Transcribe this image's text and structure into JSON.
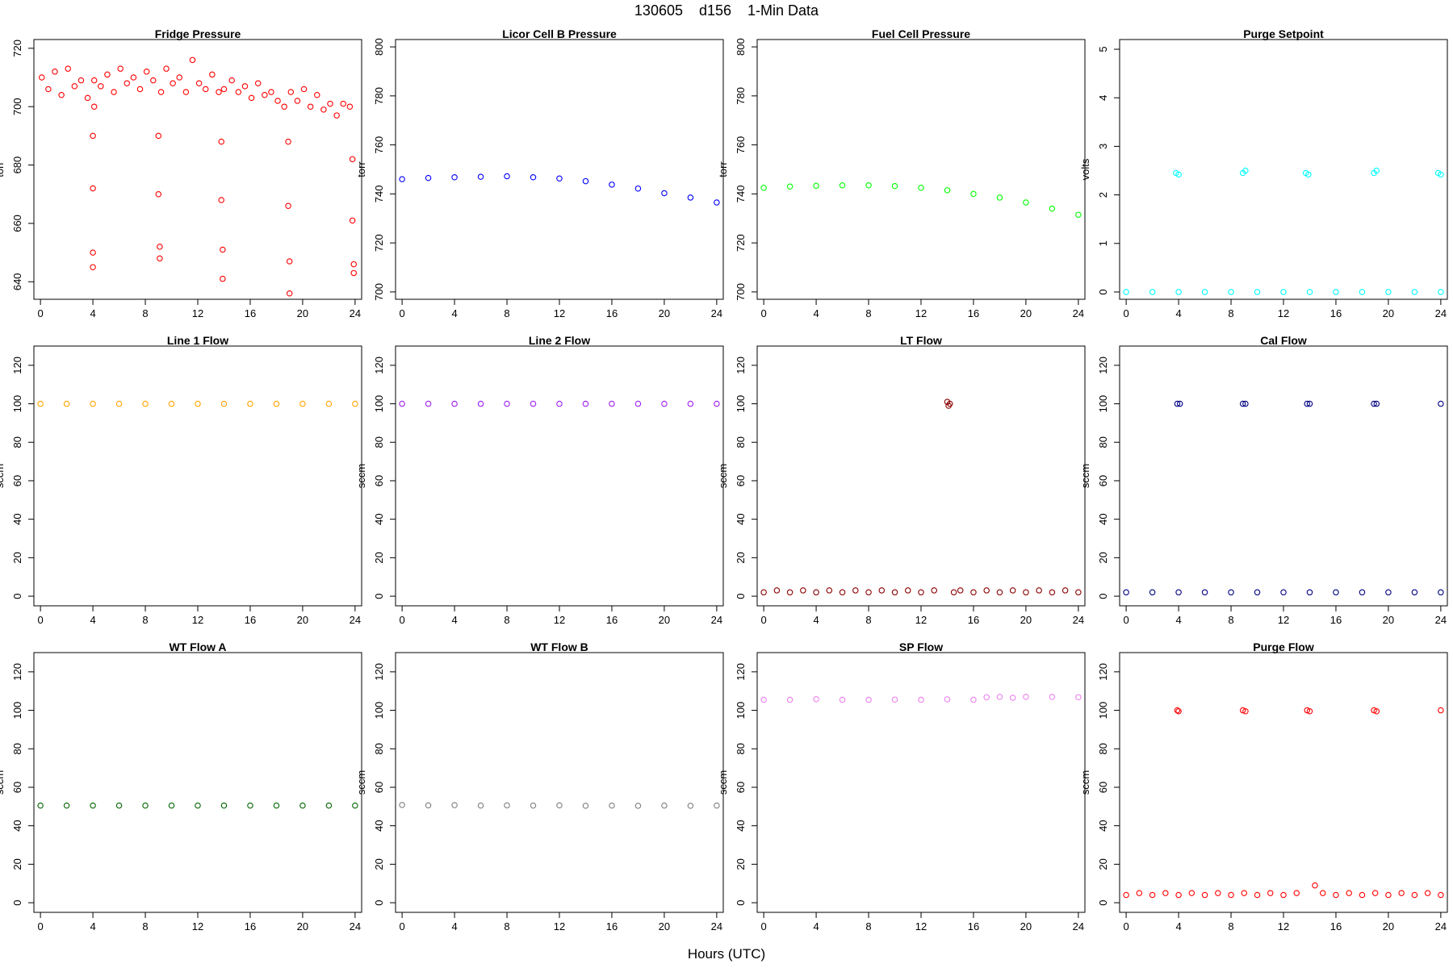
{
  "figure": {
    "title": "130605    d156    1-Min Data",
    "xlabel": "Hours (UTC)"
  },
  "chart_data": [
    {
      "type": "scatter",
      "title": "Fridge Pressure",
      "ylabel": "torr",
      "color": "#ff0000",
      "xlim": [
        -0.5,
        24.5
      ],
      "ylim": [
        634,
        723
      ],
      "xticks": [
        0,
        4,
        8,
        12,
        16,
        20,
        24
      ],
      "yticks": [
        640,
        660,
        680,
        700,
        720
      ],
      "series": [
        {
          "x": [
            0.1,
            0.6,
            1.1,
            1.6,
            2.1,
            2.6,
            3.1,
            3.6,
            4.0,
            4.0,
            4.0,
            4.0,
            4.1,
            4.1,
            4.6,
            5.1,
            5.6,
            6.1,
            6.6,
            7.1,
            7.6,
            8.1,
            8.6,
            9.0,
            9.0,
            9.1,
            9.1,
            9.2,
            9.6,
            10.1,
            10.6,
            11.1,
            11.6,
            12.1,
            12.6,
            13.1,
            13.6,
            13.8,
            13.8,
            13.9,
            13.9,
            14.0,
            14.6,
            15.1,
            15.6,
            16.1,
            16.6,
            17.1,
            17.6,
            18.1,
            18.6,
            18.9,
            18.9,
            19.0,
            19.0,
            19.1,
            19.6,
            20.1,
            20.6,
            21.1,
            21.6,
            22.1,
            22.6,
            23.1,
            23.6,
            23.8,
            23.8,
            23.9,
            23.9
          ],
          "y": [
            710,
            706,
            712,
            704,
            713,
            707,
            709,
            703,
            690,
            672,
            650,
            645,
            700,
            709,
            707,
            711,
            705,
            713,
            708,
            710,
            706,
            712,
            709,
            690,
            670,
            652,
            648,
            705,
            713,
            708,
            710,
            705,
            716,
            708,
            706,
            711,
            705,
            688,
            668,
            651,
            641,
            706,
            709,
            705,
            707,
            703,
            708,
            704,
            705,
            702,
            700,
            688,
            666,
            647,
            636,
            705,
            702,
            706,
            700,
            704,
            699,
            701,
            697,
            701,
            700,
            682,
            661,
            646,
            643
          ]
        }
      ]
    },
    {
      "type": "scatter",
      "title": "Licor Cell B Pressure",
      "ylabel": "torr",
      "color": "#0000ff",
      "xlim": [
        -0.5,
        24.5
      ],
      "ylim": [
        697,
        803
      ],
      "xticks": [
        0,
        4,
        8,
        12,
        16,
        20,
        24
      ],
      "yticks": [
        700,
        720,
        740,
        760,
        780,
        800
      ],
      "series": [
        {
          "x": [
            0,
            2,
            4,
            6,
            8,
            10,
            12,
            14,
            16,
            18,
            20,
            22,
            24
          ],
          "y": [
            746,
            746.5,
            746.8,
            747,
            747.2,
            746.8,
            746.3,
            745.2,
            743.8,
            742.2,
            740.3,
            738.5,
            736.5
          ]
        }
      ]
    },
    {
      "type": "scatter",
      "title": "Fuel Cell Pressure",
      "ylabel": "torr",
      "color": "#00ff00",
      "xlim": [
        -0.5,
        24.5
      ],
      "ylim": [
        697,
        803
      ],
      "xticks": [
        0,
        4,
        8,
        12,
        16,
        20,
        24
      ],
      "yticks": [
        700,
        720,
        740,
        760,
        780,
        800
      ],
      "series": [
        {
          "x": [
            0,
            2,
            4,
            6,
            8,
            10,
            12,
            14,
            16,
            18,
            20,
            22,
            24
          ],
          "y": [
            742.5,
            743,
            743.3,
            743.5,
            743.5,
            743.2,
            742.5,
            741.5,
            740,
            738.5,
            736.5,
            734,
            731.5
          ]
        }
      ]
    },
    {
      "type": "scatter",
      "title": "Purge Setpoint",
      "ylabel": "volts",
      "color": "#00ffff",
      "xlim": [
        -0.5,
        24.5
      ],
      "ylim": [
        -0.15,
        5.2
      ],
      "xticks": [
        0,
        4,
        8,
        12,
        16,
        20,
        24
      ],
      "yticks": [
        0,
        1,
        2,
        3,
        4,
        5
      ],
      "series": [
        {
          "x": [
            0,
            2,
            4,
            6,
            8,
            10,
            12,
            14,
            16,
            18,
            20,
            22,
            24,
            3.8,
            4.0,
            8.9,
            9.1,
            13.7,
            13.9,
            18.9,
            19.1,
            23.8,
            24.0
          ],
          "y": [
            0,
            0,
            0,
            0,
            0,
            0,
            0,
            0,
            0,
            0,
            0,
            0,
            0,
            2.45,
            2.42,
            2.45,
            2.5,
            2.45,
            2.42,
            2.45,
            2.5,
            2.45,
            2.42
          ]
        }
      ]
    },
    {
      "type": "scatter",
      "title": "Line 1 Flow",
      "ylabel": "sccm",
      "color": "#ffa500",
      "xlim": [
        -0.5,
        24.5
      ],
      "ylim": [
        -5,
        130
      ],
      "xticks": [
        0,
        4,
        8,
        12,
        16,
        20,
        24
      ],
      "yticks": [
        0,
        20,
        40,
        60,
        80,
        100,
        120
      ],
      "series": [
        {
          "x": [
            0,
            2,
            4,
            6,
            8,
            10,
            12,
            14,
            16,
            18,
            20,
            22,
            24
          ],
          "y": [
            100,
            100,
            100,
            100,
            100,
            100,
            100,
            100,
            100,
            100,
            100,
            100,
            100
          ]
        }
      ]
    },
    {
      "type": "scatter",
      "title": "Line 2 Flow",
      "ylabel": "sccm",
      "color": "#a020f0",
      "xlim": [
        -0.5,
        24.5
      ],
      "ylim": [
        -5,
        130
      ],
      "xticks": [
        0,
        4,
        8,
        12,
        16,
        20,
        24
      ],
      "yticks": [
        0,
        20,
        40,
        60,
        80,
        100,
        120
      ],
      "series": [
        {
          "x": [
            0,
            2,
            4,
            6,
            8,
            10,
            12,
            14,
            16,
            18,
            20,
            22,
            24
          ],
          "y": [
            100,
            100,
            100,
            100,
            100,
            100,
            100,
            100,
            100,
            100,
            100,
            100,
            100
          ]
        }
      ]
    },
    {
      "type": "scatter",
      "title": "LT Flow",
      "ylabel": "sccm",
      "color": "#8b0000",
      "xlim": [
        -0.5,
        24.5
      ],
      "ylim": [
        -5,
        130
      ],
      "xticks": [
        0,
        4,
        8,
        12,
        16,
        20,
        24
      ],
      "yticks": [
        0,
        20,
        40,
        60,
        80,
        100,
        120
      ],
      "series": [
        {
          "x": [
            0,
            1,
            2,
            3,
            4,
            5,
            6,
            7,
            8,
            9,
            10,
            11,
            12,
            13,
            14.5,
            15,
            16,
            17,
            18,
            19,
            20,
            21,
            22,
            23,
            24,
            14.0,
            14.1,
            14.2
          ],
          "y": [
            2,
            3,
            2,
            3,
            2,
            3,
            2,
            3,
            2,
            3,
            2,
            3,
            2,
            3,
            2,
            3,
            2,
            3,
            2,
            3,
            2,
            3,
            2,
            3,
            2,
            101,
            99,
            100
          ]
        }
      ]
    },
    {
      "type": "scatter",
      "title": "Cal Flow",
      "ylabel": "sccm",
      "color": "#000080",
      "xlim": [
        -0.5,
        24.5
      ],
      "ylim": [
        -5,
        130
      ],
      "xticks": [
        0,
        4,
        8,
        12,
        16,
        20,
        24
      ],
      "yticks": [
        0,
        20,
        40,
        60,
        80,
        100,
        120
      ],
      "series": [
        {
          "x": [
            0,
            2,
            4,
            6,
            8,
            10,
            12,
            14,
            16,
            18,
            20,
            22,
            24,
            3.9,
            4.1,
            8.9,
            9.1,
            13.8,
            14.0,
            18.9,
            19.1,
            24.0
          ],
          "y": [
            2,
            2,
            2,
            2,
            2,
            2,
            2,
            2,
            2,
            2,
            2,
            2,
            2,
            100,
            100,
            100,
            100,
            100,
            100,
            100,
            100,
            100
          ]
        }
      ]
    },
    {
      "type": "scatter",
      "title": "WT Flow A",
      "ylabel": "sccm",
      "color": "#006400",
      "xlim": [
        -0.5,
        24.5
      ],
      "ylim": [
        -5,
        130
      ],
      "xticks": [
        0,
        4,
        8,
        12,
        16,
        20,
        24
      ],
      "yticks": [
        0,
        20,
        40,
        60,
        80,
        100,
        120
      ],
      "series": [
        {
          "x": [
            0,
            2,
            4,
            6,
            8,
            10,
            12,
            14,
            16,
            18,
            20,
            22,
            24
          ],
          "y": [
            50.5,
            50.5,
            50.5,
            50.5,
            50.5,
            50.5,
            50.5,
            50.5,
            50.5,
            50.5,
            50.5,
            50.5,
            50.5
          ]
        }
      ]
    },
    {
      "type": "scatter",
      "title": "WT Flow B",
      "ylabel": "sccm",
      "color": "#808080",
      "xlim": [
        -0.5,
        24.5
      ],
      "ylim": [
        -5,
        130
      ],
      "xticks": [
        0,
        4,
        8,
        12,
        16,
        20,
        24
      ],
      "yticks": [
        0,
        20,
        40,
        60,
        80,
        100,
        120
      ],
      "series": [
        {
          "x": [
            0,
            2,
            4,
            6,
            8,
            10,
            12,
            14,
            16,
            18,
            20,
            22,
            24
          ],
          "y": [
            50.8,
            50.6,
            50.7,
            50.5,
            50.6,
            50.5,
            50.6,
            50.4,
            50.5,
            50.4,
            50.5,
            50.4,
            50.5
          ]
        }
      ]
    },
    {
      "type": "scatter",
      "title": "SP Flow",
      "ylabel": "sccm",
      "color": "#ee82ee",
      "xlim": [
        -0.5,
        24.5
      ],
      "ylim": [
        -5,
        130
      ],
      "xticks": [
        0,
        4,
        8,
        12,
        16,
        20,
        24
      ],
      "yticks": [
        0,
        20,
        40,
        60,
        80,
        100,
        120
      ],
      "series": [
        {
          "x": [
            0,
            2,
            4,
            6,
            8,
            10,
            12,
            14,
            16,
            17,
            18,
            19,
            20,
            22,
            24
          ],
          "y": [
            105.5,
            105.5,
            105.8,
            105.5,
            105.5,
            105.6,
            105.5,
            105.7,
            105.5,
            106.8,
            107,
            106.5,
            107,
            107,
            106.8
          ]
        }
      ]
    },
    {
      "type": "scatter",
      "title": "Purge Flow",
      "ylabel": "sccm",
      "color": "#ff0000",
      "xlim": [
        -0.5,
        24.5
      ],
      "ylim": [
        -5,
        130
      ],
      "xticks": [
        0,
        4,
        8,
        12,
        16,
        20,
        24
      ],
      "yticks": [
        0,
        20,
        40,
        60,
        80,
        100,
        120
      ],
      "series": [
        {
          "x": [
            0,
            1,
            2,
            3,
            4,
            5,
            6,
            7,
            8,
            9,
            10,
            11,
            12,
            13,
            14.4,
            15,
            16,
            17,
            18,
            19,
            20,
            21,
            22,
            23,
            24,
            3.9,
            4.0,
            8.9,
            9.1,
            13.8,
            14.0,
            18.9,
            19.1,
            24.0
          ],
          "y": [
            4,
            5,
            4,
            5,
            4,
            5,
            4,
            5,
            4,
            5,
            4,
            5,
            4,
            5,
            9,
            5,
            4,
            5,
            4,
            5,
            4,
            5,
            4,
            5,
            4,
            100,
            99.5,
            100,
            99.5,
            100,
            99.5,
            100,
            99.5,
            100
          ]
        }
      ]
    }
  ]
}
